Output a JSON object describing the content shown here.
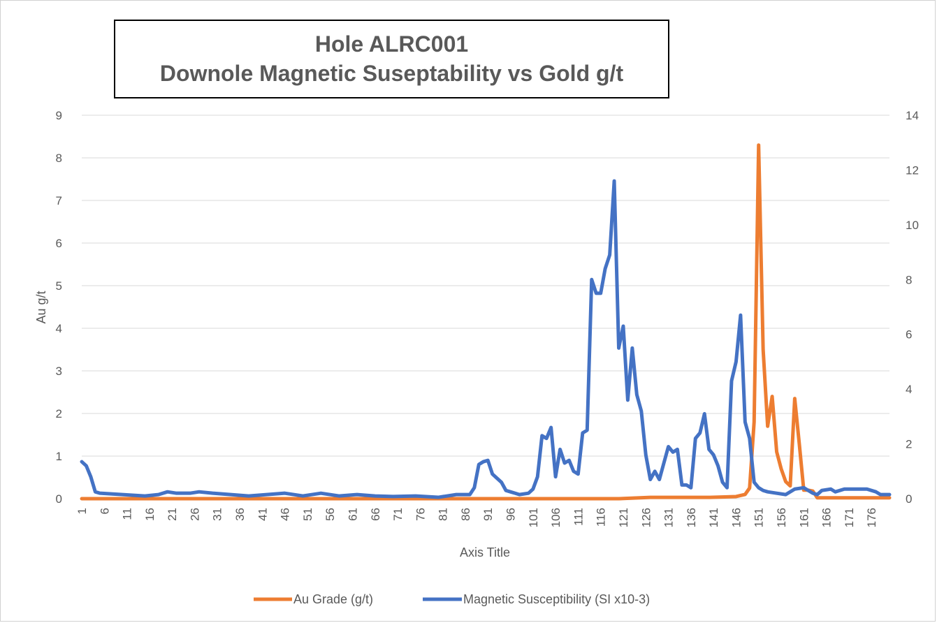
{
  "chart_data": {
    "type": "line",
    "title_line1": "Hole ALRC001",
    "title_line2": "Downole Magnetic Suseptability vs Gold g/t",
    "xlabel": "Axis Title",
    "ylabel": "Au g/t",
    "ylim": [
      0,
      9
    ],
    "y2lim": [
      0,
      14
    ],
    "y_ticks": [
      "0",
      "1",
      "2",
      "3",
      "4",
      "5",
      "6",
      "7",
      "8",
      "9"
    ],
    "y2_ticks": [
      "0",
      "2",
      "4",
      "6",
      "8",
      "10",
      "12",
      "14"
    ],
    "x_tick_labels": [
      "1",
      "6",
      "11",
      "16",
      "21",
      "26",
      "31",
      "36",
      "41",
      "46",
      "51",
      "56",
      "61",
      "66",
      "71",
      "76",
      "81",
      "86",
      "91",
      "96",
      "101",
      "106",
      "111",
      "116",
      "121",
      "126",
      "131",
      "136",
      "141",
      "146",
      "151",
      "156",
      "161",
      "166",
      "171",
      "176"
    ],
    "x_count": 180,
    "grid": true,
    "legend_position": "bottom",
    "colors": {
      "au": "#ED7D31",
      "mag": "#4472C4",
      "grid": "#d9d9d9"
    },
    "series": [
      {
        "name": "Au Grade (g/t)",
        "axis": "left",
        "points": [
          [
            1,
            0
          ],
          [
            120,
            0
          ],
          [
            127,
            0.03
          ],
          [
            140,
            0.03
          ],
          [
            146,
            0.05
          ],
          [
            148,
            0.1
          ],
          [
            149,
            0.25
          ],
          [
            150,
            1.8
          ],
          [
            151,
            8.3
          ],
          [
            152,
            3.5
          ],
          [
            153,
            1.7
          ],
          [
            154,
            2.4
          ],
          [
            155,
            1.1
          ],
          [
            156,
            0.7
          ],
          [
            157,
            0.4
          ],
          [
            158,
            0.3
          ],
          [
            159,
            2.35
          ],
          [
            160,
            1.3
          ],
          [
            161,
            0.2
          ],
          [
            162,
            0.2
          ],
          [
            163,
            0.18
          ],
          [
            164,
            0.02
          ],
          [
            180,
            0.02
          ]
        ]
      },
      {
        "name": "Magnetic Susceptibility (SI x10-3)",
        "axis": "right",
        "points": [
          [
            1,
            1.35
          ],
          [
            2,
            1.2
          ],
          [
            3,
            0.8
          ],
          [
            4,
            0.25
          ],
          [
            5,
            0.2
          ],
          [
            10,
            0.15
          ],
          [
            15,
            0.1
          ],
          [
            18,
            0.15
          ],
          [
            20,
            0.25
          ],
          [
            22,
            0.2
          ],
          [
            25,
            0.2
          ],
          [
            27,
            0.25
          ],
          [
            30,
            0.2
          ],
          [
            34,
            0.15
          ],
          [
            38,
            0.1
          ],
          [
            42,
            0.15
          ],
          [
            46,
            0.2
          ],
          [
            50,
            0.1
          ],
          [
            54,
            0.2
          ],
          [
            58,
            0.1
          ],
          [
            62,
            0.15
          ],
          [
            66,
            0.1
          ],
          [
            70,
            0.08
          ],
          [
            75,
            0.1
          ],
          [
            80,
            0.05
          ],
          [
            84,
            0.15
          ],
          [
            87,
            0.15
          ],
          [
            88,
            0.4
          ],
          [
            89,
            1.25
          ],
          [
            90,
            1.35
          ],
          [
            91,
            1.4
          ],
          [
            92,
            0.9
          ],
          [
            93,
            0.75
          ],
          [
            94,
            0.6
          ],
          [
            95,
            0.3
          ],
          [
            96,
            0.25
          ],
          [
            97,
            0.2
          ],
          [
            98,
            0.15
          ],
          [
            100,
            0.2
          ],
          [
            101,
            0.35
          ],
          [
            102,
            0.8
          ],
          [
            103,
            2.3
          ],
          [
            104,
            2.2
          ],
          [
            105,
            2.6
          ],
          [
            106,
            0.8
          ],
          [
            107,
            1.8
          ],
          [
            108,
            1.3
          ],
          [
            109,
            1.4
          ],
          [
            110,
            1.0
          ],
          [
            111,
            0.9
          ],
          [
            112,
            2.4
          ],
          [
            113,
            2.5
          ],
          [
            114,
            8.0
          ],
          [
            115,
            7.5
          ],
          [
            116,
            7.5
          ],
          [
            117,
            8.4
          ],
          [
            118,
            8.9
          ],
          [
            119,
            11.6
          ],
          [
            120,
            5.5
          ],
          [
            121,
            6.3
          ],
          [
            122,
            3.6
          ],
          [
            123,
            5.5
          ],
          [
            124,
            3.8
          ],
          [
            125,
            3.2
          ],
          [
            126,
            1.6
          ],
          [
            127,
            0.7
          ],
          [
            128,
            1.0
          ],
          [
            129,
            0.7
          ],
          [
            130,
            1.3
          ],
          [
            131,
            1.9
          ],
          [
            132,
            1.7
          ],
          [
            133,
            1.8
          ],
          [
            134,
            0.5
          ],
          [
            135,
            0.5
          ],
          [
            136,
            0.4
          ],
          [
            137,
            2.2
          ],
          [
            138,
            2.4
          ],
          [
            139,
            3.1
          ],
          [
            140,
            1.8
          ],
          [
            141,
            1.6
          ],
          [
            142,
            1.2
          ],
          [
            143,
            0.6
          ],
          [
            144,
            0.4
          ],
          [
            145,
            4.3
          ],
          [
            146,
            5.0
          ],
          [
            147,
            6.7
          ],
          [
            148,
            2.8
          ],
          [
            149,
            2.2
          ],
          [
            150,
            0.6
          ],
          [
            151,
            0.4
          ],
          [
            152,
            0.3
          ],
          [
            153,
            0.25
          ],
          [
            155,
            0.2
          ],
          [
            157,
            0.15
          ],
          [
            159,
            0.35
          ],
          [
            161,
            0.4
          ],
          [
            162,
            0.3
          ],
          [
            163,
            0.2
          ],
          [
            164,
            0.15
          ],
          [
            165,
            0.3
          ],
          [
            167,
            0.35
          ],
          [
            168,
            0.25
          ],
          [
            170,
            0.35
          ],
          [
            172,
            0.35
          ],
          [
            175,
            0.35
          ],
          [
            177,
            0.25
          ],
          [
            178,
            0.15
          ],
          [
            180,
            0.15
          ]
        ]
      }
    ]
  }
}
